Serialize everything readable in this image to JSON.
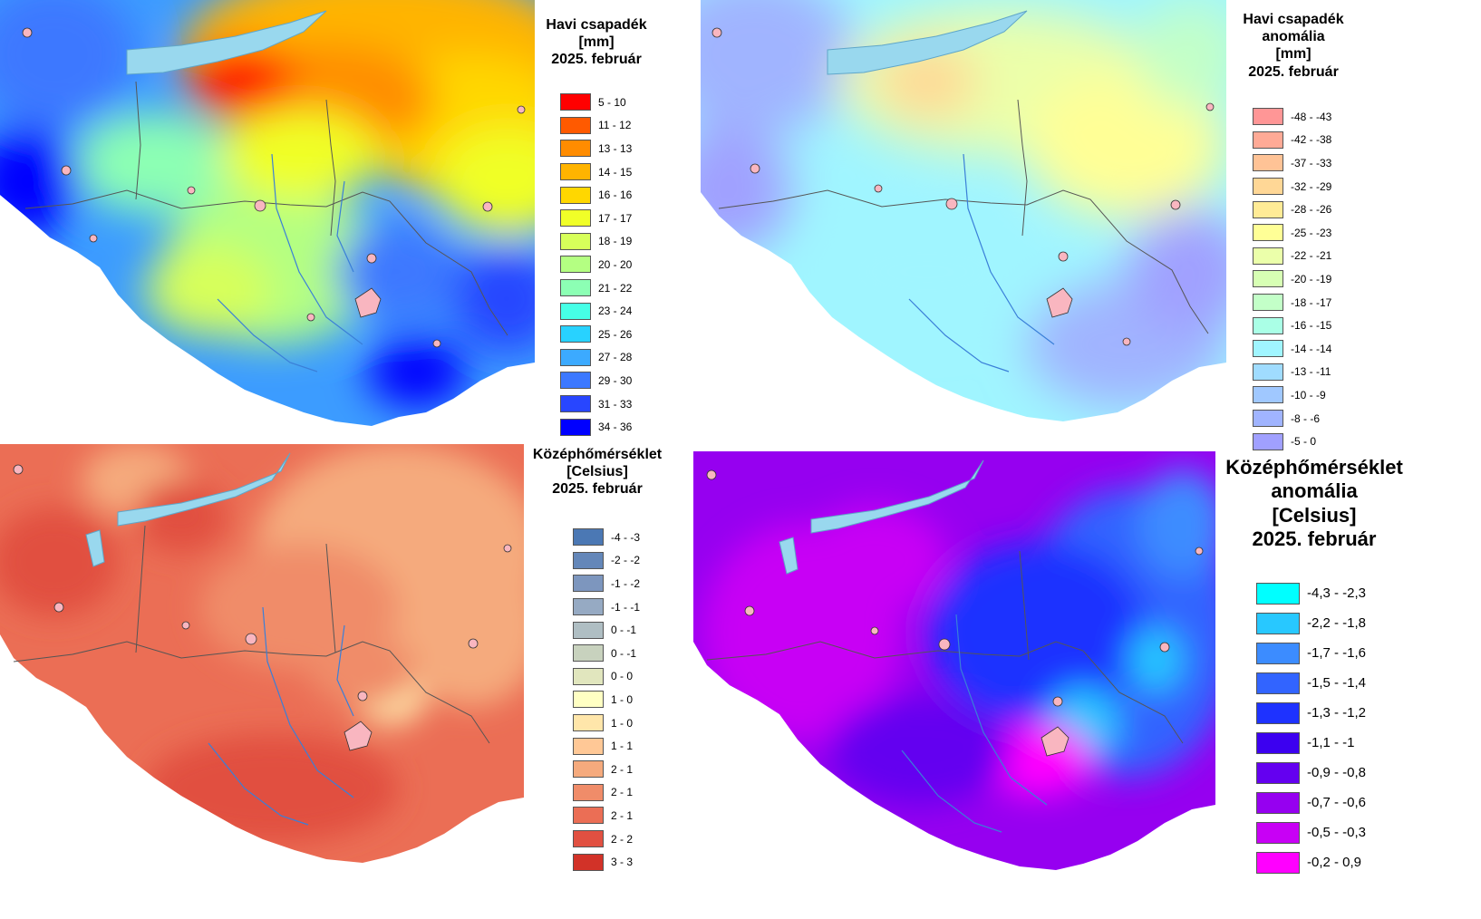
{
  "maps": [
    {
      "id": "tl",
      "title_lines": [
        "Havi csapadék",
        "[mm]",
        "2025. február"
      ],
      "legend": [
        {
          "label": "5 - 10",
          "color": "#ff0000"
        },
        {
          "label": "11 - 12",
          "color": "#ff5a00"
        },
        {
          "label": "13 - 13",
          "color": "#ff8c00"
        },
        {
          "label": "14 - 15",
          "color": "#ffb400"
        },
        {
          "label": "16 - 16",
          "color": "#ffd700"
        },
        {
          "label": "17 - 17",
          "color": "#f0ff28"
        },
        {
          "label": "18 - 19",
          "color": "#d7ff5a"
        },
        {
          "label": "20 - 20",
          "color": "#b4ff82"
        },
        {
          "label": "21 - 22",
          "color": "#8cffb4"
        },
        {
          "label": "23 - 24",
          "color": "#46ffe6"
        },
        {
          "label": "25 - 26",
          "color": "#28d2ff"
        },
        {
          "label": "27 - 28",
          "color": "#3caaff"
        },
        {
          "label": "29 - 30",
          "color": "#3c78ff"
        },
        {
          "label": "31 - 33",
          "color": "#2846ff"
        },
        {
          "label": "34 - 36",
          "color": "#0000ff"
        }
      ]
    },
    {
      "id": "tr",
      "title_lines": [
        "Havi csapadék",
        "anomália",
        "[mm]",
        "2025. február"
      ],
      "legend": [
        {
          "label": "-48 - -43",
          "color": "#ff9696"
        },
        {
          "label": "-42 - -38",
          "color": "#ffaa96"
        },
        {
          "label": "-37 - -33",
          "color": "#ffc396"
        },
        {
          "label": "-32 - -29",
          "color": "#ffd796"
        },
        {
          "label": "-28 - -26",
          "color": "#ffeb96"
        },
        {
          "label": "-25 - -23",
          "color": "#ffff96"
        },
        {
          "label": "-22 - -21",
          "color": "#ebffaa"
        },
        {
          "label": "-20 - -19",
          "color": "#d7ffb4"
        },
        {
          "label": "-18 - -17",
          "color": "#c3ffc8"
        },
        {
          "label": "-16 - -15",
          "color": "#aaffe6"
        },
        {
          "label": "-14 - -14",
          "color": "#a0f5ff"
        },
        {
          "label": "-13 - -11",
          "color": "#a0dcff"
        },
        {
          "label": "-10 - -9",
          "color": "#a0c8ff"
        },
        {
          "label": "-8 - -6",
          "color": "#a0b4ff"
        },
        {
          "label": "-5 - 0",
          "color": "#a0a0ff"
        }
      ]
    },
    {
      "id": "bl",
      "title_lines": [
        "Középhőmérséklet",
        "[Celsius]",
        "2025. február"
      ],
      "legend": [
        {
          "label": "-4 - -3",
          "color": "#4b78b4"
        },
        {
          "label": "-2 - -2",
          "color": "#6487b9"
        },
        {
          "label": "-1 - -2",
          "color": "#7d96be"
        },
        {
          "label": "-1 - -1",
          "color": "#96aac3"
        },
        {
          "label": "0 - -1",
          "color": "#afbec3"
        },
        {
          "label": "0 - -1",
          "color": "#c8d2be"
        },
        {
          "label": "0 - 0",
          "color": "#e1e6be"
        },
        {
          "label": "1 - 0",
          "color": "#ffffc3"
        },
        {
          "label": "1 - 0",
          "color": "#ffe6aa"
        },
        {
          "label": "1 - 1",
          "color": "#ffc896"
        },
        {
          "label": "2 - 1",
          "color": "#f5aa7d"
        },
        {
          "label": "2 - 1",
          "color": "#f08c69"
        },
        {
          "label": "2 - 1",
          "color": "#eb6e55"
        },
        {
          "label": "2 - 2",
          "color": "#e15041"
        },
        {
          "label": "3 - 3",
          "color": "#d23228"
        }
      ]
    },
    {
      "id": "br",
      "title_lines": [
        "Középhőmérséklet",
        "anomália",
        "[Celsius]",
        "2025. február"
      ],
      "legend": [
        {
          "label": "-4,3 - -2,3",
          "color": "#00ffff"
        },
        {
          "label": "-2,2 - -1,8",
          "color": "#28c8ff"
        },
        {
          "label": "-1,7 - -1,6",
          "color": "#3c8cff"
        },
        {
          "label": "-1,5 - -1,4",
          "color": "#3264ff"
        },
        {
          "label": "-1,3 - -1,2",
          "color": "#1e32ff"
        },
        {
          "label": "-1,1 - -1",
          "color": "#3c00f0"
        },
        {
          "label": "-0,9 - -0,8",
          "color": "#6400f0"
        },
        {
          "label": "-0,7 - -0,6",
          "color": "#9600f0"
        },
        {
          "label": "-0,5 - -0,3",
          "color": "#c800f5"
        },
        {
          "label": "-0,2 - 0,9",
          "color": "#ff00ff"
        }
      ]
    }
  ]
}
